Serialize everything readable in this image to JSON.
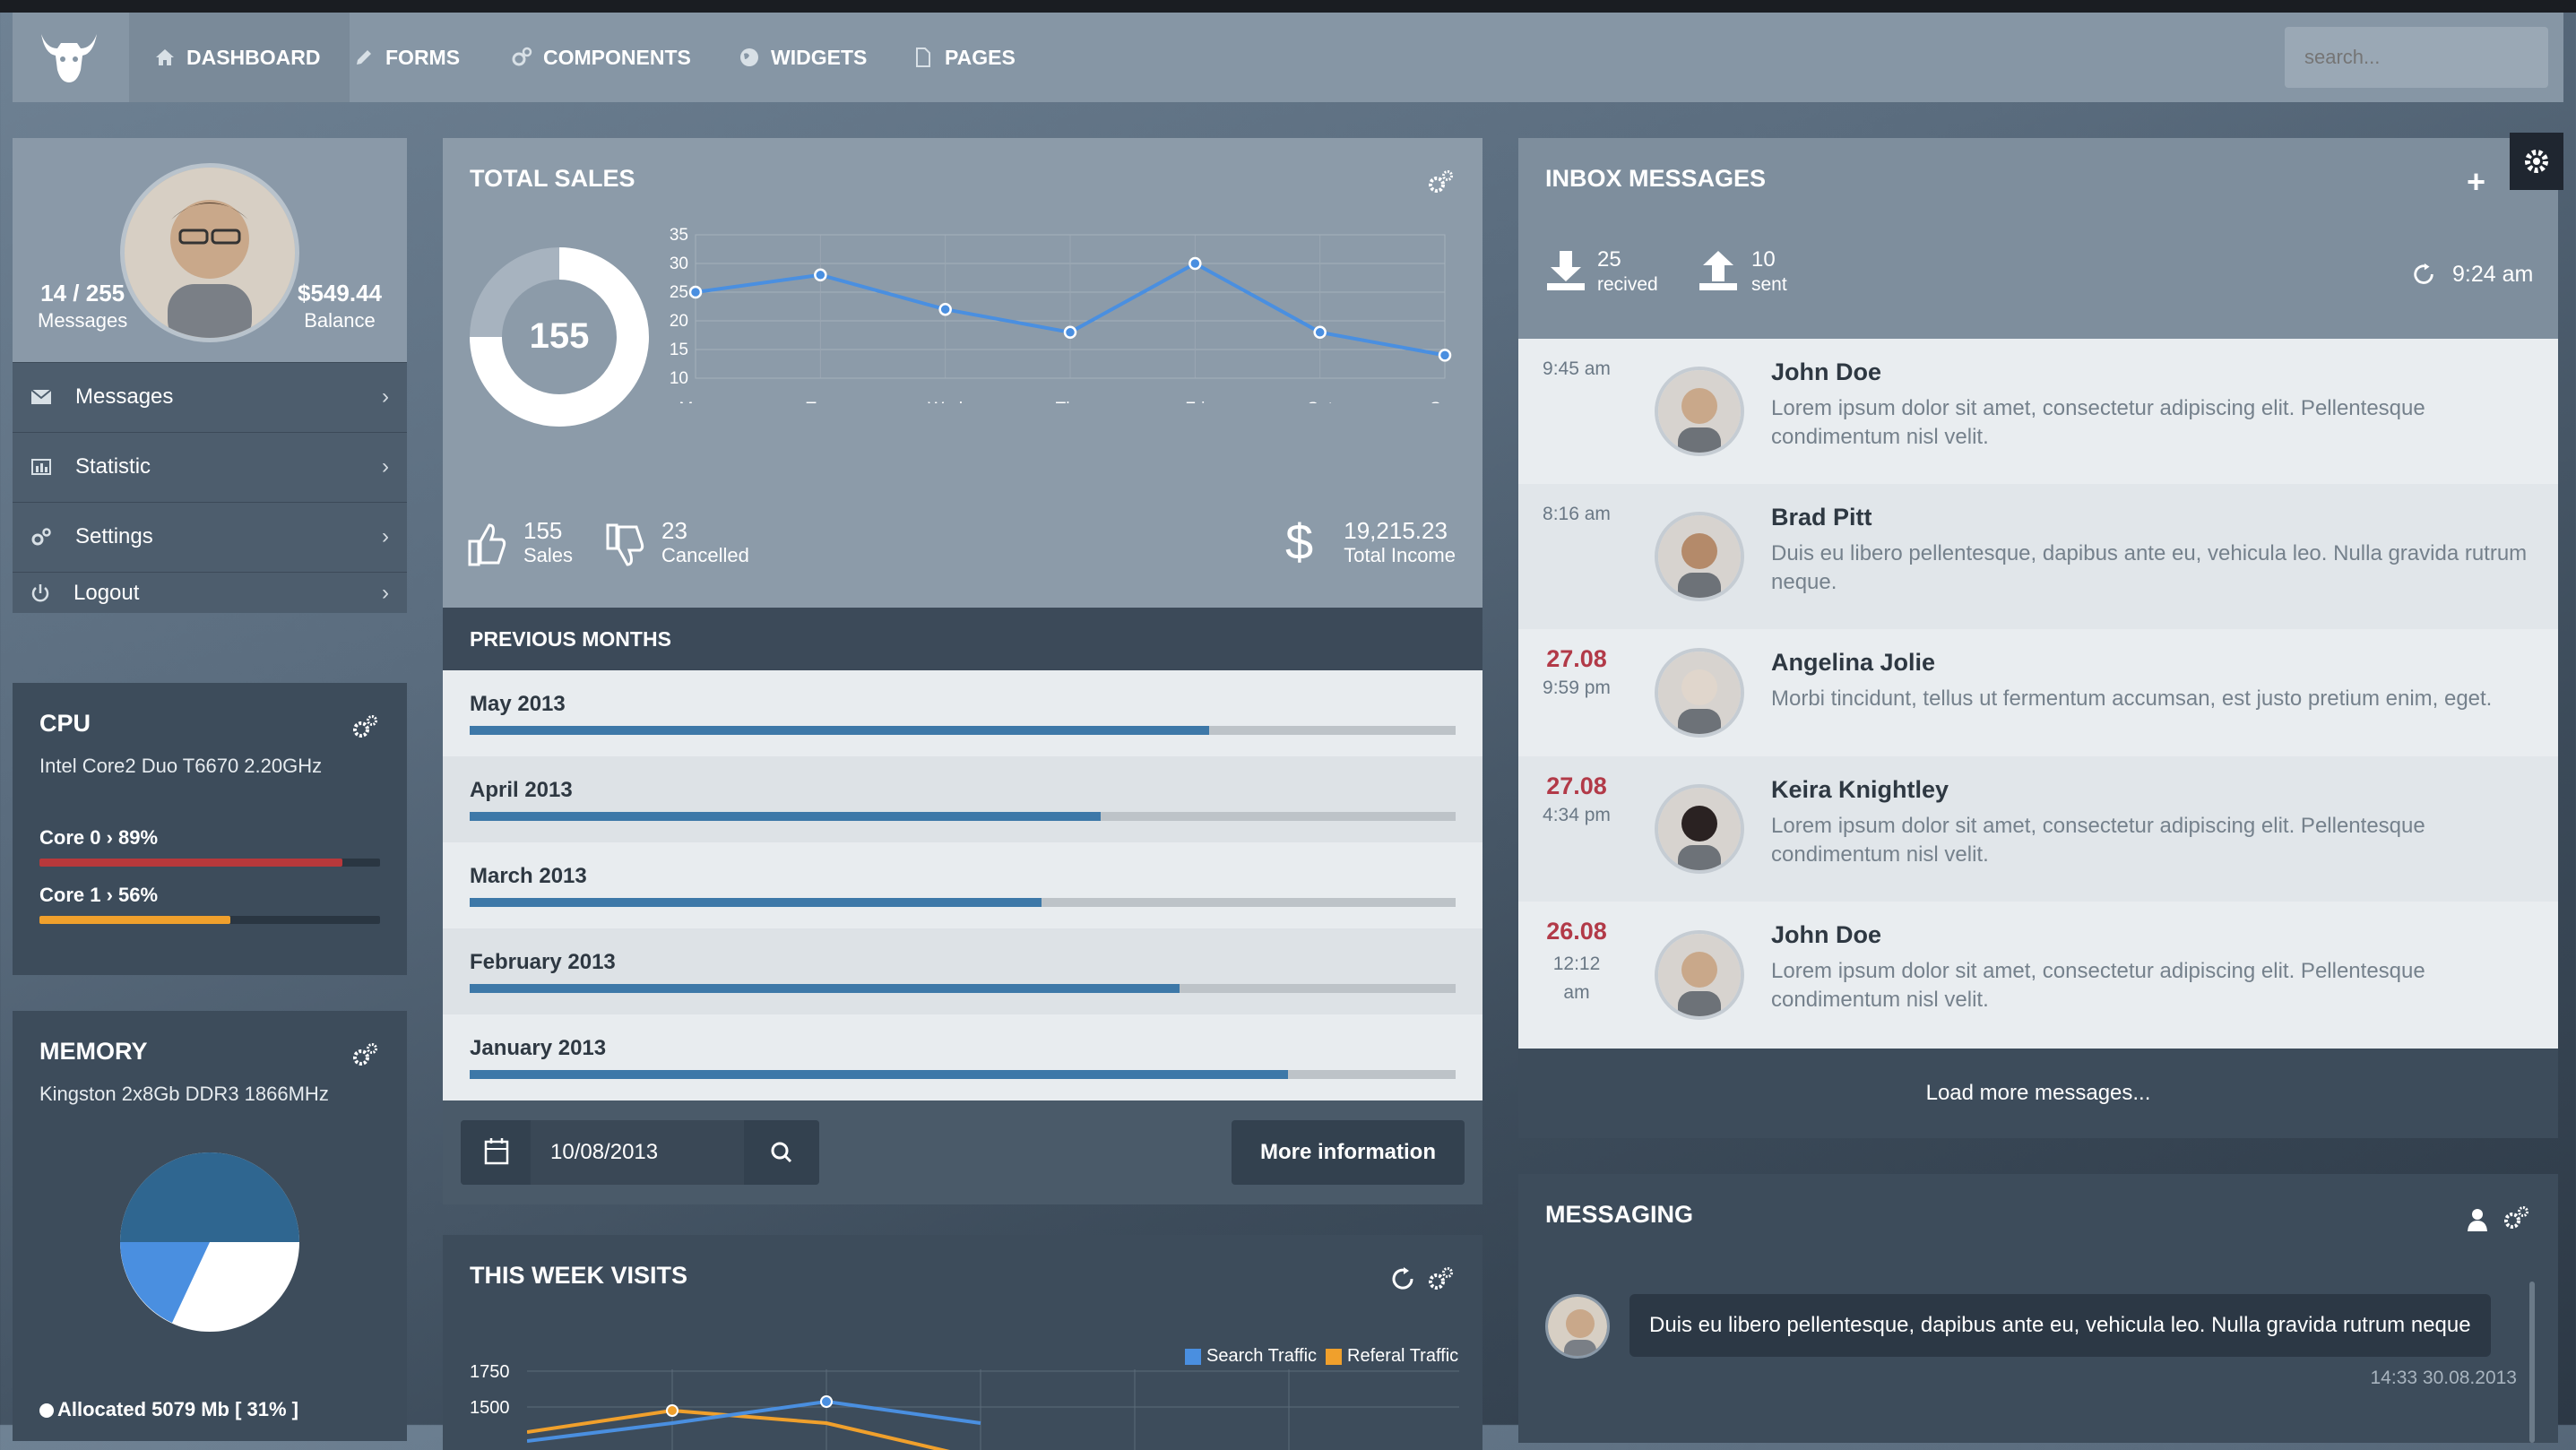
{
  "nav": {
    "items": [
      {
        "label": "DASHBOARD",
        "icon": "home-icon"
      },
      {
        "label": "FORMS",
        "icon": "pencil-icon"
      },
      {
        "label": "COMPONENTS",
        "icon": "gears-icon"
      },
      {
        "label": "WIDGETS",
        "icon": "globe-icon"
      },
      {
        "label": "PAGES",
        "icon": "file-icon"
      }
    ],
    "search_placeholder": "search..."
  },
  "profile": {
    "messages_value": "14 / 255",
    "messages_label": "Messages",
    "balance_value": "$549.44",
    "balance_label": "Balance",
    "menu": [
      {
        "label": "Messages",
        "icon": "envelope-icon"
      },
      {
        "label": "Statistic",
        "icon": "bar-chart-icon"
      },
      {
        "label": "Settings",
        "icon": "gears-icon"
      },
      {
        "label": "Logout",
        "icon": "power-icon"
      }
    ]
  },
  "cpu": {
    "title": "CPU",
    "model": "Intel Core2 Duo T6670 2.20GHz",
    "cores": [
      {
        "label": "Core 0 › 89%",
        "value": 89,
        "color": "#b8383b"
      },
      {
        "label": "Core 1 › 56%",
        "value": 56,
        "color": "#f0a02c"
      }
    ]
  },
  "memory": {
    "title": "MEMORY",
    "model": "Kingston 2x8Gb DDR3 1866MHz",
    "allocated": "Allocated 5079 Mb [ 31% ]"
  },
  "sales": {
    "title": "TOTAL SALES",
    "donut_value": "155",
    "chart_data": {
      "type": "line",
      "categories": [
        "Mon",
        "Tue",
        "Wed",
        "Thu",
        "Fri",
        "Sat",
        "Sun"
      ],
      "values": [
        25,
        28,
        22,
        18,
        30,
        18,
        14
      ],
      "ylim": [
        10,
        35
      ],
      "yticks": [
        35,
        30,
        25,
        20,
        15,
        10
      ]
    },
    "stats": [
      {
        "value": "155",
        "label": "Sales",
        "icon": "thumbs-up-icon"
      },
      {
        "value": "23",
        "label": "Cancelled",
        "icon": "thumbs-down-icon"
      },
      {
        "value": "19,215.23",
        "label": "Total Income",
        "icon": "dollar-icon"
      }
    ],
    "prev_title": "PREVIOUS MONTHS",
    "months": [
      {
        "name": "May 2013",
        "progress": 0.75
      },
      {
        "name": "April 2013",
        "progress": 0.64
      },
      {
        "name": "March 2013",
        "progress": 0.58
      },
      {
        "name": "February 2013",
        "progress": 0.72
      },
      {
        "name": "January 2013",
        "progress": 0.83
      }
    ],
    "date_value": "10/08/2013",
    "more_button": "More information"
  },
  "visits": {
    "title": "THIS WEEK VISITS",
    "legend": [
      "Search Traffic",
      "Referal Traffic"
    ],
    "yticks": [
      "1750",
      "1500"
    ]
  },
  "inbox": {
    "title": "INBOX MESSAGES",
    "received_count": "25",
    "received_label": "recived",
    "sent_count": "10",
    "sent_label": "sent",
    "time": "9:24 am",
    "messages": [
      {
        "time": "9:45 am",
        "date": "",
        "name": "John Doe",
        "text": "Lorem ipsum dolor sit amet, consectetur adipiscing elit. Pellentesque condimentum nisl velit."
      },
      {
        "time": "8:16 am",
        "date": "",
        "name": "Brad Pitt",
        "text": "Duis eu libero pellentesque, dapibus ante eu, vehicula leo. Nulla gravida rutrum neque."
      },
      {
        "time": "9:59 pm",
        "date": "27.08",
        "name": "Angelina Jolie",
        "text": "Morbi tincidunt, tellus ut fermentum accumsan, est justo pretium enim, eget."
      },
      {
        "time": "4:34 pm",
        "date": "27.08",
        "name": "Keira Knightley",
        "text": "Lorem ipsum dolor sit amet, consectetur adipiscing elit. Pellentesque condimentum nisl velit."
      },
      {
        "time": "12:12 am",
        "date": "26.08",
        "name": "John Doe",
        "text": "Lorem ipsum dolor sit amet, consectetur adipiscing elit. Pellentesque condimentum nisl velit."
      }
    ],
    "load_more": "Load more messages..."
  },
  "messaging": {
    "title": "MESSAGING",
    "bubble": "Duis eu libero pellentesque, dapibus ante eu, vehicula leo. Nulla gravida rutrum neque",
    "timestamp": "14:33 30.08.2013"
  }
}
